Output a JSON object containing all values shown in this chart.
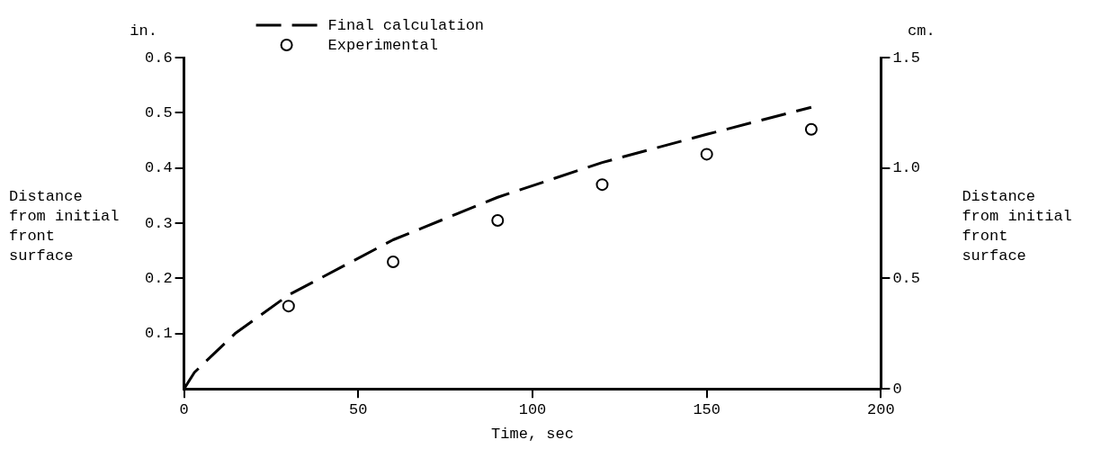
{
  "chart_data": {
    "type": "line",
    "xlabel": "Time, sec",
    "ylabel": "Distance from initial front surface",
    "y2label": "Distance from initial front surface",
    "annotations": [
      "in.",
      "cm."
    ],
    "xlim": [
      0,
      200
    ],
    "xticks": [
      0,
      50,
      100,
      150,
      200
    ],
    "ylim": [
      0,
      0.6
    ],
    "yticks": [
      0.1,
      0.2,
      0.3,
      0.4,
      0.5,
      0.6
    ],
    "y2lim": [
      0,
      1.5
    ],
    "y2ticks": [
      0,
      0.5,
      {
        "value": 1.0,
        "label": "1.0"
      },
      1.5
    ],
    "grid": false,
    "legend": "top",
    "series": [
      {
        "name": "Final calculation",
        "color": "#000000",
        "line_style": "dashed",
        "marker": "none",
        "x": [
          0,
          3,
          14.6,
          30,
          60,
          90,
          120,
          150,
          180
        ],
        "values": [
          0,
          0.03,
          0.1,
          0.17,
          0.27,
          0.347,
          0.41,
          0.461,
          0.51
        ]
      },
      {
        "name": "Experimental",
        "type": "scatter",
        "color": "#000000",
        "marker": "circle",
        "x": [
          30,
          60,
          90,
          120,
          150,
          180
        ],
        "values": [
          0.15,
          0.23,
          0.305,
          0.37,
          0.425,
          0.47
        ]
      }
    ]
  }
}
